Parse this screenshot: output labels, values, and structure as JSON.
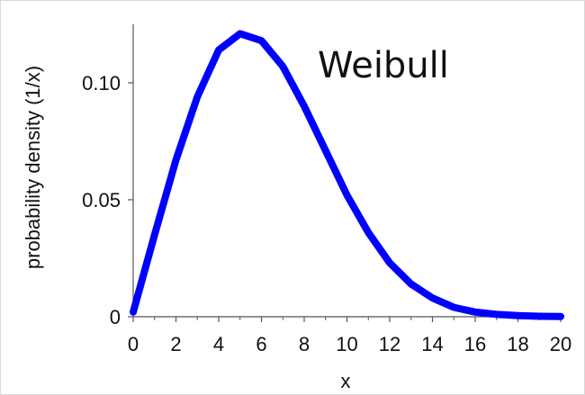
{
  "chart_data": {
    "type": "line",
    "title": "Weibull",
    "xlabel": "x",
    "ylabel": "probability density (1/x)",
    "xlim": [
      0,
      20
    ],
    "ylim": [
      0,
      0.125
    ],
    "x_ticks": [
      "0",
      "2",
      "4",
      "6",
      "8",
      "10",
      "12",
      "14",
      "16",
      "18",
      "20"
    ],
    "x_tick_values": [
      0,
      2,
      4,
      6,
      8,
      10,
      12,
      14,
      16,
      18,
      20
    ],
    "y_ticks": [
      "0",
      "0.05",
      "0.10"
    ],
    "y_tick_values": [
      0,
      0.05,
      0.1
    ],
    "grid": false,
    "legend": "none",
    "series": [
      {
        "color": "#0000ff",
        "x": [
          0,
          1,
          2,
          3,
          4,
          5,
          6,
          7,
          8,
          9,
          10,
          11,
          12,
          13,
          14,
          15,
          16,
          17,
          18,
          19,
          20
        ],
        "y": [
          0.002,
          0.035,
          0.067,
          0.094,
          0.114,
          0.121,
          0.118,
          0.107,
          0.09,
          0.071,
          0.052,
          0.036,
          0.023,
          0.014,
          0.008,
          0.004,
          0.002,
          0.001,
          0.0005,
          0.0002,
          0.0001
        ]
      }
    ]
  }
}
